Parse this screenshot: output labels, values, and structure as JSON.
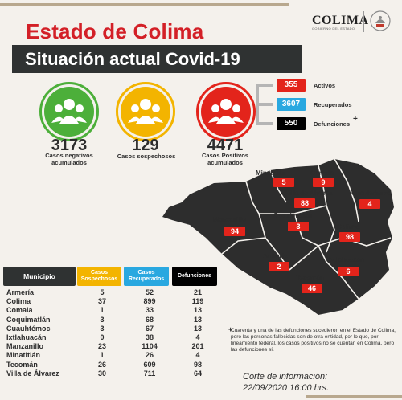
{
  "header": {
    "title": "Estado de Colima",
    "banner": "Situación actual Covid-19",
    "logo_text": "COLIMA",
    "logo_subtext": "GOBIERNO DEL ESTADO"
  },
  "summary": {
    "negativos": {
      "value": "3173",
      "label_1": "Casos negativos",
      "label_2": "acumulados",
      "color": "#4caf3a"
    },
    "sospechosos": {
      "value": "129",
      "label_1": "Casos sospechosos",
      "color": "#f3b400"
    },
    "positivos": {
      "value": "4471",
      "label_1": "Casos Positivos",
      "label_2": "acumulados",
      "color": "#e3241b"
    }
  },
  "breakdown": {
    "activos": {
      "value": "355",
      "label": "Activos",
      "color": "#e3241b"
    },
    "recuperados": {
      "value": "3607",
      "label": "Recuperados",
      "color": "#29a8e0"
    },
    "defunciones": {
      "value": "550",
      "label": "Defunciones",
      "mark": "+",
      "color": "#000000"
    }
  },
  "map": {
    "municipios": [
      {
        "name": "Minatitlán",
        "value": "5"
      },
      {
        "name": "Comala",
        "value": "9"
      },
      {
        "name": "Villa de Álvarez",
        "value": "88"
      },
      {
        "name": "Cuauhtémoc",
        "value": "4"
      },
      {
        "name": "Manzanillo",
        "value": "94"
      },
      {
        "name": "Coquimatlán",
        "value": "3"
      },
      {
        "name": "Colima",
        "value": "98"
      },
      {
        "name": "Armería",
        "value": "2"
      },
      {
        "name": "Ixtlahuacán",
        "value": "6"
      },
      {
        "name": "Tecomán",
        "value": "46"
      }
    ]
  },
  "table": {
    "headers": [
      "Municipio",
      "Casos Sospechosos",
      "Casos Recuperados",
      "Defunciones"
    ],
    "header_colors": [
      "#2f3232",
      "#f3b400",
      "#29a8e0",
      "#000000"
    ],
    "rows": [
      [
        "Armería",
        "5",
        "52",
        "21"
      ],
      [
        "Colima",
        "37",
        "899",
        "119"
      ],
      [
        "Comala",
        "1",
        "33",
        "13"
      ],
      [
        "Coquimatlán",
        "3",
        "68",
        "13"
      ],
      [
        "Cuauhtémoc",
        "3",
        "67",
        "13"
      ],
      [
        "Ixtlahuacán",
        "0",
        "38",
        "4"
      ],
      [
        "Manzanillo",
        "23",
        "1104",
        "201"
      ],
      [
        "Minatitlán",
        "1",
        "26",
        "4"
      ],
      [
        "Tecomán",
        "26",
        "609",
        "98"
      ],
      [
        "Villa de Álvarez",
        "30",
        "711",
        "64"
      ]
    ]
  },
  "footer": {
    "note_mark": "+",
    "note": "Cuarenta y una de las defunciones sucedieron en el Estado de Colima, pero las personas fallecidas son de otra entidad, por lo que, por lineamiento federal, los casos positivos no se cuentan en Colima, pero las defunciones sí.",
    "corte_label": "Corte de información:",
    "corte_date": "22/09/2020 16:00 hrs."
  }
}
